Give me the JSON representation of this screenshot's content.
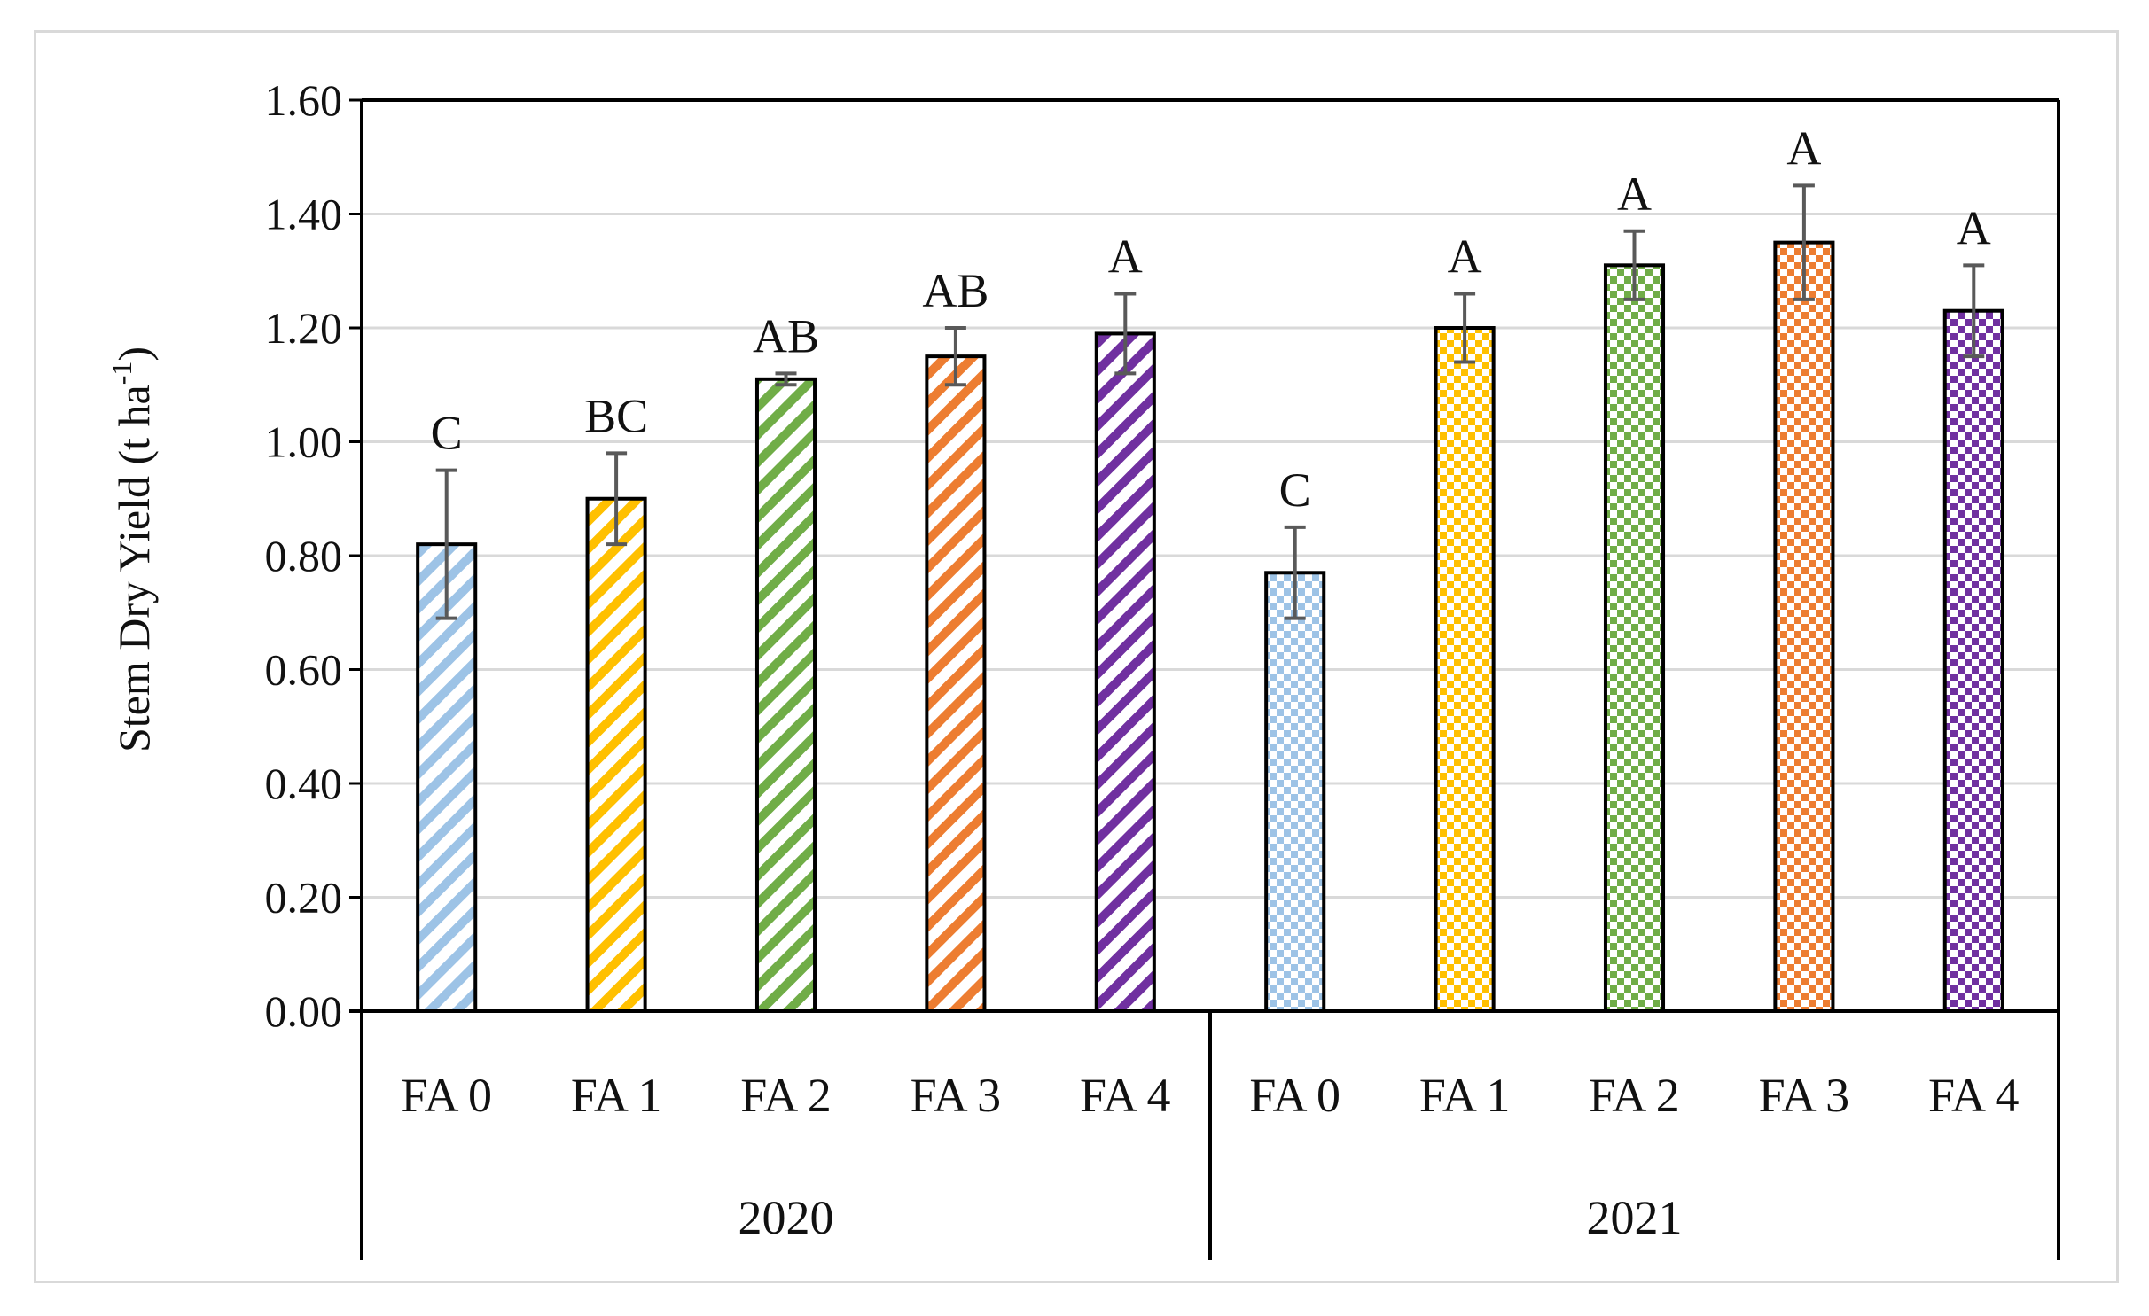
{
  "chart_data": {
    "type": "bar",
    "title": "",
    "ylabel_main": "Stem Dry Yield (t ha",
    "ylabel_sup": "-1",
    "ylabel_end": ")",
    "xlabel": "",
    "ylim": [
      0,
      1.6
    ],
    "yticks": [
      "0.00",
      "0.20",
      "0.40",
      "0.60",
      "0.80",
      "1.00",
      "1.20",
      "1.40",
      "1.60"
    ],
    "grid": true,
    "groups": [
      {
        "label": "2020",
        "pattern": "diagonal-stripes",
        "bars": [
          {
            "category": "FA 0",
            "value": 0.82,
            "error": 0.13,
            "letter": "C",
            "color": "#9dc3e6"
          },
          {
            "category": "FA 1",
            "value": 0.9,
            "error": 0.08,
            "letter": "BC",
            "color": "#ffc000"
          },
          {
            "category": "FA 2",
            "value": 1.11,
            "error": 0.01,
            "letter": "AB",
            "color": "#70ad47"
          },
          {
            "category": "FA 3",
            "value": 1.15,
            "error": 0.05,
            "letter": "AB",
            "color": "#ed7d31"
          },
          {
            "category": "FA 4",
            "value": 1.19,
            "error": 0.07,
            "letter": "A",
            "color": "#7030a0"
          }
        ]
      },
      {
        "label": "2021",
        "pattern": "dotted-grid",
        "bars": [
          {
            "category": "FA 0",
            "value": 0.77,
            "error": 0.08,
            "letter": "C",
            "color": "#9dc3e6"
          },
          {
            "category": "FA 1",
            "value": 1.2,
            "error": 0.06,
            "letter": "A",
            "color": "#ffc000"
          },
          {
            "category": "FA 2",
            "value": 1.31,
            "error": 0.06,
            "letter": "A",
            "color": "#70ad47"
          },
          {
            "category": "FA 3",
            "value": 1.35,
            "error": 0.1,
            "letter": "A",
            "color": "#ed7d31"
          },
          {
            "category": "FA 4",
            "value": 1.23,
            "error": 0.08,
            "letter": "A",
            "color": "#7030a0"
          }
        ]
      }
    ]
  }
}
